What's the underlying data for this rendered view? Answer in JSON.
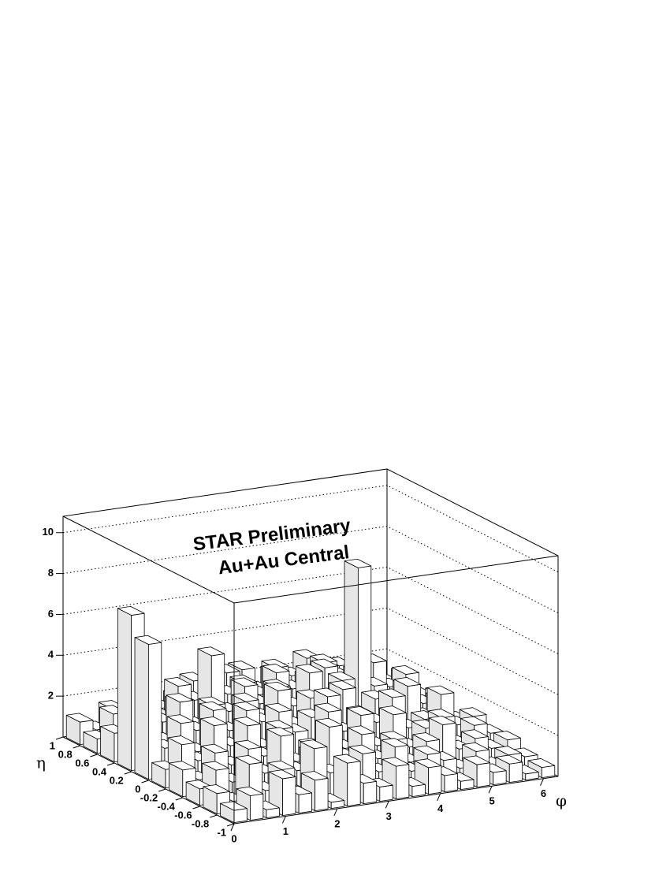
{
  "chart_data": {
    "type": "lego",
    "annotations": [
      "STAR Preliminary",
      "Au+Au Central"
    ],
    "xlabel": "φ",
    "ylabel": "η",
    "xlim": [
      0,
      6.283
    ],
    "ylim": [
      -1,
      1
    ],
    "zlim": [
      0,
      10.8
    ],
    "xticks": [
      0,
      1,
      2,
      3,
      4,
      5,
      6
    ],
    "yticks": [
      -1,
      -0.8,
      -0.6,
      -0.4,
      -0.2,
      0,
      0.2,
      0.4,
      0.6,
      0.8,
      1
    ],
    "zticks": [
      2,
      4,
      6,
      8,
      10
    ],
    "grid": true,
    "color": "#ffffff",
    "xbins": [
      0,
      0.314,
      0.628,
      0.942,
      1.257,
      1.571,
      1.885,
      2.199,
      2.513,
      2.827,
      3.142,
      3.456,
      3.77,
      4.084,
      4.398,
      4.712,
      5.027,
      5.341,
      5.655,
      5.969,
      6.283
    ],
    "ybins": [
      -1,
      -0.8,
      -0.6,
      -0.4,
      -0.2,
      0,
      0.2,
      0.4,
      0.6,
      0.8,
      1
    ],
    "values": [
      [
        0.6,
        1.2,
        0.4,
        1.8,
        0.9,
        1.5,
        0.3,
        2.1,
        1.0,
        0.7,
        1.6,
        0.5,
        1.3,
        0.8,
        0.4,
        1.1,
        0.6,
        0.9,
        0.3,
        0.5
      ],
      [
        1.0,
        0.5,
        2.2,
        0.8,
        1.7,
        0.4,
        2.5,
        1.2,
        0.6,
        1.9,
        0.9,
        2.0,
        0.7,
        1.4,
        1.0,
        0.5,
        1.2,
        0.4,
        0.8,
        0.6
      ],
      [
        0.8,
        1.6,
        0.9,
        2.4,
        1.1,
        2.8,
        1.0,
        1.7,
        2.9,
        1.3,
        2.3,
        1.0,
        1.8,
        0.6,
        1.5,
        2.2,
        0.9,
        1.3,
        0.7,
        1.0
      ],
      [
        1.3,
        0.7,
        1.9,
        1.2,
        3.0,
        1.4,
        2.6,
        0.9,
        1.5,
        3.1,
        1.2,
        2.7,
        1.1,
        2.5,
        0.8,
        1.6,
        2.0,
        0.6,
        1.4,
        0.9
      ],
      [
        0.9,
        2.0,
        1.1,
        2.7,
        1.6,
        3.2,
        1.3,
        2.9,
        1.8,
        2.4,
        3.3,
        1.5,
        2.2,
        1.7,
        2.8,
        1.2,
        1.5,
        2.6,
        1.0,
        1.3
      ],
      [
        6.6,
        1.4,
        2.5,
        1.0,
        2.9,
        1.8,
        3.1,
        2.0,
        3.4,
        1.6,
        2.8,
        2.1,
        3.0,
        1.4,
        2.3,
        1.9,
        2.7,
        1.1,
        1.8,
        0.7
      ],
      [
        7.6,
        2.3,
        1.2,
        3.0,
        1.5,
        2.6,
        2.2,
        3.3,
        1.7,
        3.0,
        2.0,
        3.5,
        1.6,
        2.9,
        8.3,
        2.4,
        1.3,
        2.1,
        1.2,
        1.5
      ],
      [
        1.4,
        1.0,
        2.8,
        1.6,
        2.4,
        1.2,
        4.5,
        2.5,
        2.9,
        1.8,
        3.2,
        2.3,
        2.7,
        3.1,
        1.9,
        2.6,
        3.0,
        1.7,
        2.2,
        1.0
      ],
      [
        0.7,
        1.8,
        1.0,
        2.2,
        1.3,
        2.7,
        1.9,
        1.4,
        3.0,
        2.2,
        1.7,
        2.9,
        2.4,
        1.6,
        2.8,
        2.0,
        1.5,
        2.4,
        1.1,
        1.6
      ],
      [
        1.1,
        0.6,
        1.5,
        0.9,
        2.0,
        1.2,
        1.6,
        2.3,
        1.0,
        1.9,
        2.5,
        1.4,
        2.1,
        1.1,
        2.6,
        1.3,
        2.0,
        1.2,
        1.7,
        0.8
      ]
    ]
  }
}
